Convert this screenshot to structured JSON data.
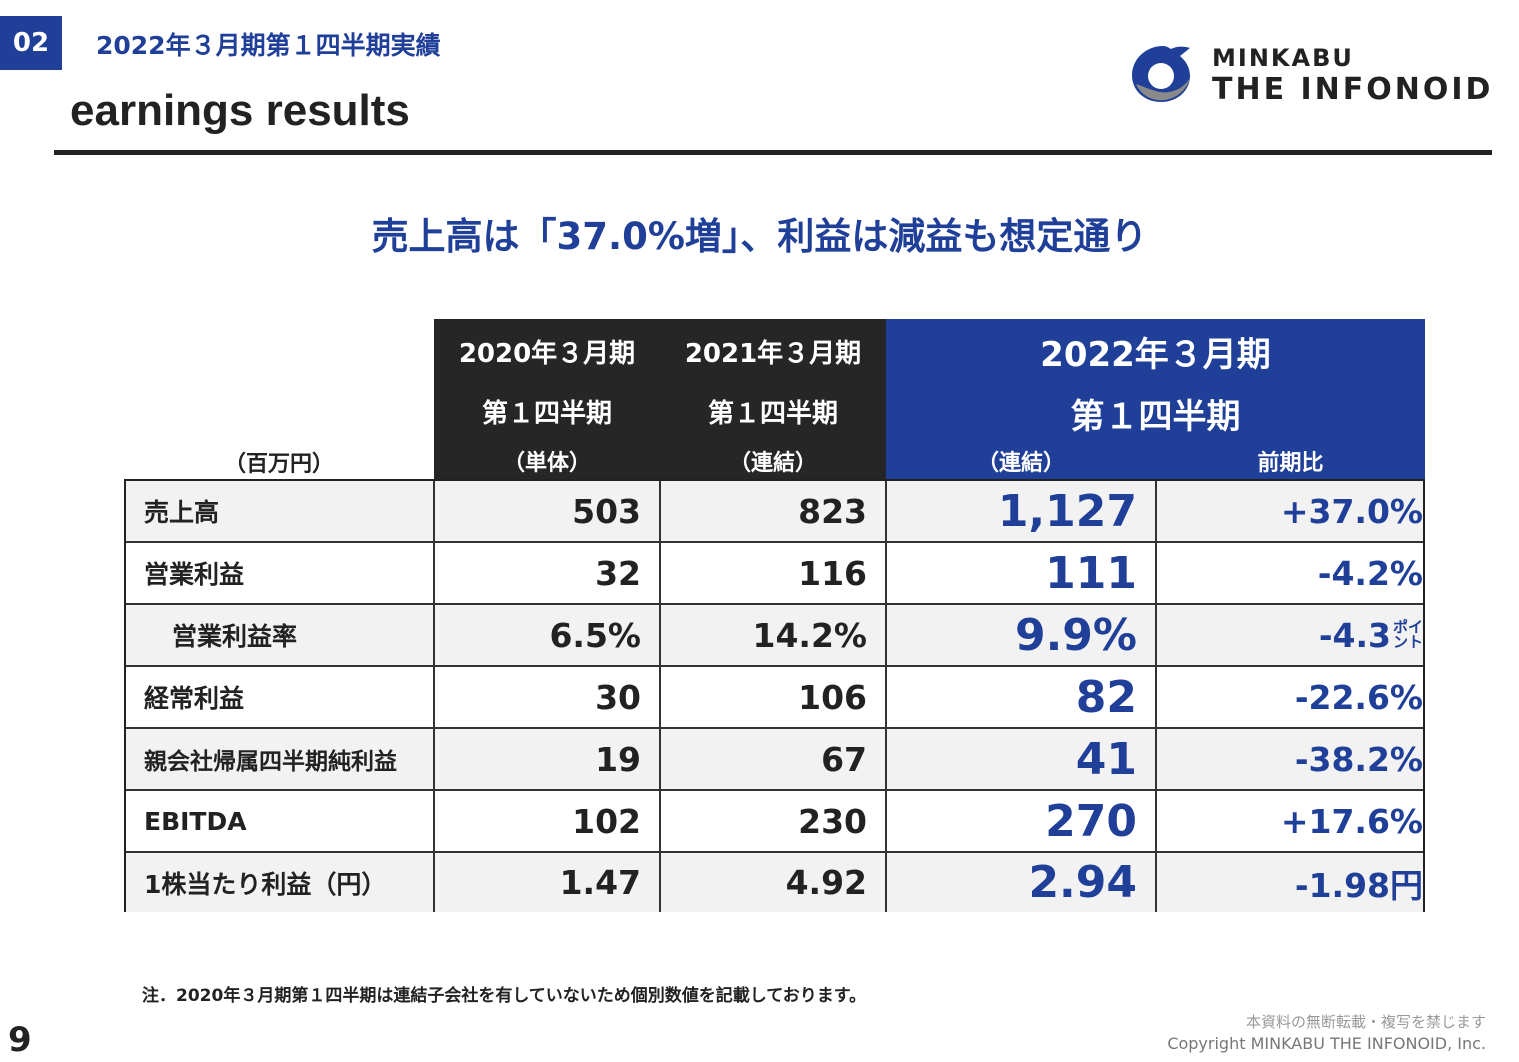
{
  "header": {
    "section_number": "02",
    "section_title": "2022年３月期第１四半期実績",
    "heading": "earnings results"
  },
  "logo": {
    "brand_top": "MINKABU",
    "brand_bottom": "THE INFONOID",
    "colors": {
      "dark": "#1f3f98",
      "mid": "#8a8a8a"
    }
  },
  "headline": "売上高は「37.0%増」、利益は減益も想定通り",
  "table": {
    "unit_label": "（百万円）",
    "columns": [
      {
        "line1": "2020年３月期",
        "line2": "第１四半期",
        "line3": "（単体）"
      },
      {
        "line1": "2021年３月期",
        "line2": "第１四半期",
        "line3": "（連結）"
      }
    ],
    "current_column": {
      "line1": "2022年３月期",
      "line2": "第１四半期",
      "sub_left": "（連結）",
      "sub_right": "前期比"
    },
    "rows": [
      {
        "label": "売上高",
        "fy2020": "503",
        "fy2021": "823",
        "fy2022": "1,127",
        "change": "+37.0%"
      },
      {
        "label": "営業利益",
        "fy2020": "32",
        "fy2021": "116",
        "fy2022": "111",
        "change": "-4.2%"
      },
      {
        "label": "営業利益率",
        "fy2020": "6.5%",
        "fy2021": "14.2%",
        "fy2022": "9.9%",
        "change": "-4.3",
        "change_unit_top": "ポイ",
        "change_unit_bottom": "ント"
      },
      {
        "label": "経常利益",
        "fy2020": "30",
        "fy2021": "106",
        "fy2022": "82",
        "change": "-22.6%"
      },
      {
        "label": "親会社帰属四半期純利益",
        "fy2020": "19",
        "fy2021": "67",
        "fy2022": "41",
        "change": "-38.2%"
      },
      {
        "label": "EBITDA",
        "fy2020": "102",
        "fy2021": "230",
        "fy2022": "270",
        "change": "+17.6%"
      },
      {
        "label": "1株当たり利益（円）",
        "fy2020": "1.47",
        "fy2021": "4.92",
        "fy2022": "2.94",
        "change": "-1.98円"
      }
    ],
    "colors": {
      "header_dark": "#262626",
      "header_blue": "#1f3f98",
      "current_value": "#1f3f98"
    }
  },
  "footnote": "注．2020年３月期第１四半期は連結子会社を有していないため個別数値を記載しております。",
  "page_number": "9",
  "notice": "本資料の無断転載・複写を禁じます",
  "copyright": "Copyright MINKABU THE INFONOID, Inc."
}
